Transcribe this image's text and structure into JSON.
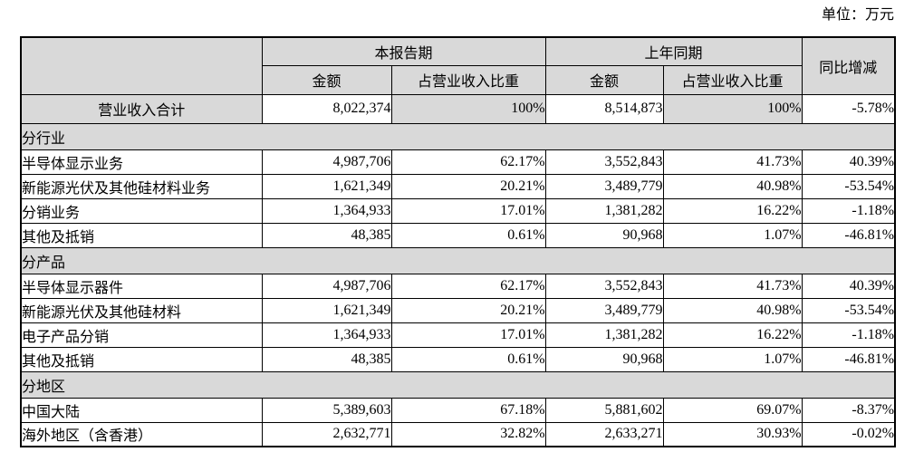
{
  "unit_label": "单位：万元",
  "colors": {
    "header_fill": "#d9d9d9",
    "border": "#000000",
    "text": "#000000",
    "background": "#ffffff"
  },
  "table": {
    "header": {
      "current_period": "本报告期",
      "prior_period": "上年同期",
      "yoy_change": "同比增减",
      "amount": "金额",
      "revenue_ratio": "占营业收入比重"
    },
    "total_row": {
      "label": "营业收入合计",
      "current_amount": "8,022,374",
      "current_ratio": "100%",
      "prior_amount": "8,514,873",
      "prior_ratio": "100%",
      "yoy": "-5.78%"
    },
    "sections": [
      {
        "title": "分行业",
        "rows": [
          {
            "label": "半导体显示业务",
            "current_amount": "4,987,706",
            "current_ratio": "62.17%",
            "prior_amount": "3,552,843",
            "prior_ratio": "41.73%",
            "yoy": "40.39%"
          },
          {
            "label": "新能源光伏及其他硅材料业务",
            "current_amount": "1,621,349",
            "current_ratio": "20.21%",
            "prior_amount": "3,489,779",
            "prior_ratio": "40.98%",
            "yoy": "-53.54%"
          },
          {
            "label": "分销业务",
            "current_amount": "1,364,933",
            "current_ratio": "17.01%",
            "prior_amount": "1,381,282",
            "prior_ratio": "16.22%",
            "yoy": "-1.18%"
          },
          {
            "label": "其他及抵销",
            "current_amount": "48,385",
            "current_ratio": "0.61%",
            "prior_amount": "90,968",
            "prior_ratio": "1.07%",
            "yoy": "-46.81%"
          }
        ]
      },
      {
        "title": "分产品",
        "rows": [
          {
            "label": "半导体显示器件",
            "current_amount": "4,987,706",
            "current_ratio": "62.17%",
            "prior_amount": "3,552,843",
            "prior_ratio": "41.73%",
            "yoy": "40.39%"
          },
          {
            "label": "新能源光伏及其他硅材料",
            "current_amount": "1,621,349",
            "current_ratio": "20.21%",
            "prior_amount": "3,489,779",
            "prior_ratio": "40.98%",
            "yoy": "-53.54%"
          },
          {
            "label": "电子产品分销",
            "current_amount": "1,364,933",
            "current_ratio": "17.01%",
            "prior_amount": "1,381,282",
            "prior_ratio": "16.22%",
            "yoy": "-1.18%"
          },
          {
            "label": "其他及抵销",
            "current_amount": "48,385",
            "current_ratio": "0.61%",
            "prior_amount": "90,968",
            "prior_ratio": "1.07%",
            "yoy": "-46.81%"
          }
        ]
      },
      {
        "title": "分地区",
        "rows": [
          {
            "label": "中国大陆",
            "current_amount": "5,389,603",
            "current_ratio": "67.18%",
            "prior_amount": "5,881,602",
            "prior_ratio": "69.07%",
            "yoy": "-8.37%"
          },
          {
            "label": "海外地区（含香港）",
            "current_amount": "2,632,771",
            "current_ratio": "32.82%",
            "prior_amount": "2,633,271",
            "prior_ratio": "30.93%",
            "yoy": "-0.02%"
          }
        ]
      }
    ]
  }
}
